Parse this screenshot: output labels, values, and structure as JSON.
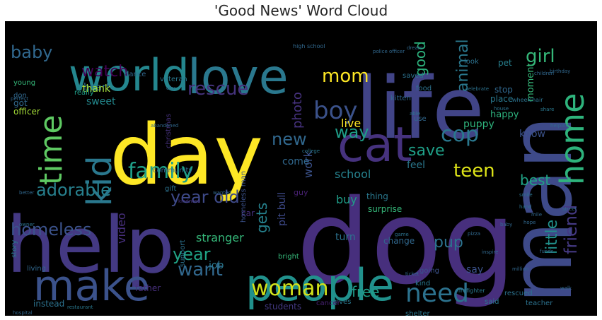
{
  "chart_data": {
    "type": "wordcloud",
    "title": "'Good News' Word Cloud",
    "background": "#000000",
    "colormap": "viridis",
    "words": [
      {
        "text": "dog",
        "color": "#472f7d"
      },
      {
        "text": "life",
        "color": "#414487"
      },
      {
        "text": "day",
        "color": "#fde725"
      },
      {
        "text": "man",
        "color": "#3e4a89"
      },
      {
        "text": "help",
        "color": "#443983"
      },
      {
        "text": "love",
        "color": "#2a788e"
      },
      {
        "text": "world",
        "color": "#24868e"
      },
      {
        "text": "people",
        "color": "#21918c"
      },
      {
        "text": "cat",
        "color": "#46327e"
      },
      {
        "text": "kid",
        "color": "#2a788e"
      },
      {
        "text": "make",
        "color": "#3b528b"
      },
      {
        "text": "time",
        "color": "#5ec962"
      },
      {
        "text": "home",
        "color": "#2eb37c"
      },
      {
        "text": "woman",
        "color": "#d2e21b"
      },
      {
        "text": "family",
        "color": "#1fa088"
      },
      {
        "text": "need",
        "color": "#2c728e"
      },
      {
        "text": "boy",
        "color": "#3b528b"
      },
      {
        "text": "cop",
        "color": "#2a788e"
      },
      {
        "text": "rescue",
        "color": "#46337e"
      },
      {
        "text": "mom",
        "color": "#fde725"
      },
      {
        "text": "adorable",
        "color": "#27808e"
      },
      {
        "text": "year old",
        "color": "#3e4a89"
      },
      {
        "text": "teen",
        "color": "#dde318"
      },
      {
        "text": "baby",
        "color": "#31688e"
      },
      {
        "text": "girl",
        "color": "#35b779"
      },
      {
        "text": "watch",
        "color": "#440154"
      },
      {
        "text": "homeless",
        "color": "#3b528b"
      },
      {
        "text": "friend",
        "color": "#443983"
      },
      {
        "text": "little",
        "color": "#21918c"
      },
      {
        "text": "want",
        "color": "#31688e"
      },
      {
        "text": "year",
        "color": "#20a386"
      },
      {
        "text": "new",
        "color": "#31688e"
      },
      {
        "text": "way",
        "color": "#1f9e89"
      },
      {
        "text": "save",
        "color": "#1fa088"
      },
      {
        "text": "good",
        "color": "#2db27d"
      },
      {
        "text": "animal",
        "color": "#2a788e"
      },
      {
        "text": "gets",
        "color": "#26828e"
      },
      {
        "text": "pup",
        "color": "#2c728e"
      },
      {
        "text": "free",
        "color": "#1f9e89"
      },
      {
        "text": "best",
        "color": "#20a386"
      },
      {
        "text": "photo",
        "color": "#46327e"
      },
      {
        "text": "work",
        "color": "#3b528b"
      },
      {
        "text": "school",
        "color": "#26828e"
      },
      {
        "text": "puppy",
        "color": "#2eb37c"
      },
      {
        "text": "live",
        "color": "#fde725"
      },
      {
        "text": "video",
        "color": "#472f7d"
      },
      {
        "text": "stranger",
        "color": "#35b779"
      },
      {
        "text": "heart",
        "color": "#2c728e"
      },
      {
        "text": "sweet",
        "color": "#23898e"
      },
      {
        "text": "pit bull",
        "color": "#3e4a89"
      },
      {
        "text": "job",
        "color": "#2a788e"
      },
      {
        "text": "buy",
        "color": "#1f9e89"
      },
      {
        "text": "turn",
        "color": "#2c728e"
      },
      {
        "text": "thank",
        "color": "#a2da37"
      },
      {
        "text": "happy",
        "color": "#2db27d"
      },
      {
        "text": "officer",
        "color": "#a2da37"
      },
      {
        "text": "dance",
        "color": "#31688e"
      },
      {
        "text": "veteran",
        "color": "#2a788e"
      },
      {
        "text": "kitten",
        "color": "#31688e"
      },
      {
        "text": "moment",
        "color": "#35b779"
      },
      {
        "text": "know",
        "color": "#3b528b"
      },
      {
        "text": "feel",
        "color": "#2a788e"
      },
      {
        "text": "come",
        "color": "#31688e"
      },
      {
        "text": "guy",
        "color": "#482173"
      },
      {
        "text": "gift",
        "color": "#2c728e"
      },
      {
        "text": "car",
        "color": "#472f7d"
      },
      {
        "text": "thing",
        "color": "#2a788e"
      },
      {
        "text": "surprise",
        "color": "#35b779"
      },
      {
        "text": "change",
        "color": "#31688e"
      },
      {
        "text": "say",
        "color": "#3b528b"
      },
      {
        "text": "father",
        "color": "#472f7d"
      },
      {
        "text": "students",
        "color": "#443983"
      },
      {
        "text": "instead",
        "color": "#2c728e"
      },
      {
        "text": "community",
        "color": "#31688e"
      },
      {
        "text": "got",
        "color": "#31688e"
      },
      {
        "text": "really",
        "color": "#1f9e89"
      },
      {
        "text": "young",
        "color": "#35b779"
      },
      {
        "text": "don",
        "color": "#31688e"
      },
      {
        "text": "saved",
        "color": "#2c728e"
      },
      {
        "text": "place",
        "color": "#2a788e"
      },
      {
        "text": "stop",
        "color": "#31688e"
      },
      {
        "text": "pet",
        "color": "#27808e"
      },
      {
        "text": "look",
        "color": "#2c728e"
      },
      {
        "text": "homeless man",
        "color": "#3b528b"
      },
      {
        "text": "christmas",
        "color": "#46327e"
      },
      {
        "text": "support",
        "color": "#2c728e"
      },
      {
        "text": "living",
        "color": "#31688e"
      },
      {
        "text": "story",
        "color": "#2a788e"
      },
      {
        "text": "kind",
        "color": "#2a788e"
      },
      {
        "text": "going",
        "color": "#3b528b"
      },
      {
        "text": "bright",
        "color": "#35b779"
      },
      {
        "text": "use",
        "color": "#31688e"
      },
      {
        "text": "shelter",
        "color": "#2a788e"
      },
      {
        "text": "gives",
        "color": "#2a788e"
      },
      {
        "text": "said",
        "color": "#2a788e"
      },
      {
        "text": "rescued",
        "color": "#2c728e"
      },
      {
        "text": "teacher",
        "color": "#2c728e"
      },
      {
        "text": "cancer",
        "color": "#482173"
      },
      {
        "text": "food",
        "color": "#2c728e"
      },
      {
        "text": "firefighter",
        "color": "#2a788e"
      },
      {
        "text": "wheelchair",
        "color": "#2c728e"
      },
      {
        "text": "high school",
        "color": "#31688e"
      },
      {
        "text": "police officer",
        "color": "#31688e"
      },
      {
        "text": "dream",
        "color": "#31688e"
      },
      {
        "text": "celebrate",
        "color": "#2c728e"
      },
      {
        "text": "birthday",
        "color": "#31688e"
      },
      {
        "text": "children",
        "color": "#31688e"
      },
      {
        "text": "college",
        "color": "#2a788e"
      },
      {
        "text": "restaurant",
        "color": "#2a788e"
      },
      {
        "text": "hospital",
        "color": "#31688e"
      },
      {
        "text": "owner",
        "color": "#2c728e"
      },
      {
        "text": "abandoned",
        "color": "#31688e"
      },
      {
        "text": "kindness",
        "color": "#46327e"
      },
      {
        "text": "million",
        "color": "#31688e"
      },
      {
        "text": "hand",
        "color": "#2c728e"
      },
      {
        "text": "perfect",
        "color": "#31688e"
      },
      {
        "text": "city",
        "color": "#31688e"
      },
      {
        "text": "wanted",
        "color": "#31688e"
      },
      {
        "text": "able",
        "color": "#2c728e"
      },
      {
        "text": "helping",
        "color": "#31688e"
      },
      {
        "text": "share",
        "color": "#2a788e"
      },
      {
        "text": "house",
        "color": "#2c728e"
      },
      {
        "text": "street",
        "color": "#31688e"
      },
      {
        "text": "walk",
        "color": "#31688e"
      },
      {
        "text": "game",
        "color": "#2c728e"
      },
      {
        "text": "pizza",
        "color": "#31688e"
      },
      {
        "text": "hope",
        "color": "#31688e"
      },
      {
        "text": "smile",
        "color": "#2c728e"
      },
      {
        "text": "better",
        "color": "#31688e"
      },
      {
        "text": "inspire",
        "color": "#31688e"
      },
      {
        "text": "ticket",
        "color": "#31688e"
      },
      {
        "text": "baby",
        "color": "#31688e"
      },
      {
        "text": "mile",
        "color": "#31688e"
      },
      {
        "text": "funds",
        "color": "#31688e"
      }
    ]
  }
}
